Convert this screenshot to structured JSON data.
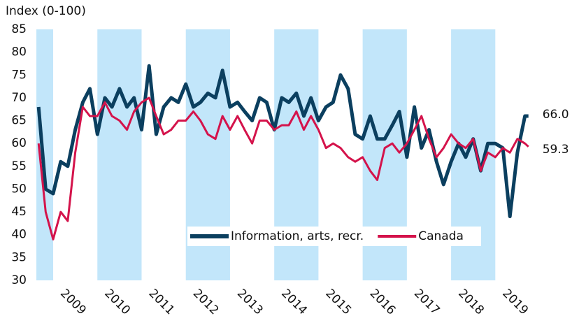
{
  "chart_data": {
    "type": "line",
    "ylabel": "Index (0-100)",
    "x": [
      2008.67,
      2008.83,
      2009.0,
      2009.17,
      2009.33,
      2009.5,
      2009.67,
      2009.83,
      2010.0,
      2010.17,
      2010.33,
      2010.5,
      2010.67,
      2010.83,
      2011.0,
      2011.17,
      2011.33,
      2011.5,
      2011.67,
      2011.83,
      2012.0,
      2012.17,
      2012.33,
      2012.5,
      2012.67,
      2012.83,
      2013.0,
      2013.17,
      2013.33,
      2013.5,
      2013.67,
      2013.83,
      2014.0,
      2014.17,
      2014.33,
      2014.5,
      2014.67,
      2014.83,
      2015.0,
      2015.17,
      2015.33,
      2015.5,
      2015.67,
      2015.83,
      2016.0,
      2016.17,
      2016.33,
      2016.5,
      2016.67,
      2016.83,
      2017.0,
      2017.17,
      2017.33,
      2017.5,
      2017.67,
      2017.83,
      2018.0,
      2018.17,
      2018.33,
      2018.5,
      2018.67,
      2018.83,
      2019.0,
      2019.17,
      2019.33,
      2019.5,
      2019.67,
      2019.75
    ],
    "series": [
      {
        "name": "Information, arts, recr.",
        "color": "#0b3f5f",
        "end_label": "66.0",
        "values": [
          68,
          50,
          49,
          56,
          55,
          63,
          69,
          72,
          62,
          70,
          68,
          72,
          68,
          70,
          63,
          77,
          62,
          68,
          70,
          69,
          73,
          68,
          69,
          71,
          70,
          76,
          68,
          69,
          67,
          65,
          70,
          69,
          63,
          70,
          69,
          71,
          66,
          70,
          65,
          68,
          69,
          75,
          72,
          62,
          61,
          66,
          61,
          61,
          64,
          67,
          57,
          68,
          59,
          63,
          56,
          51,
          56,
          60,
          57,
          61,
          54,
          60,
          60,
          59,
          44,
          58,
          66,
          66
        ]
      },
      {
        "name": "Canada",
        "color": "#d4134b",
        "end_label": "59.3",
        "values": [
          60,
          45,
          39,
          45,
          43,
          58,
          68,
          66,
          66,
          69,
          66,
          65,
          63,
          67,
          69,
          70,
          66,
          62,
          63,
          65,
          65,
          67,
          65,
          62,
          61,
          66,
          63,
          66,
          63,
          60,
          65,
          65,
          63,
          64,
          64,
          67,
          63,
          66,
          63,
          59,
          60,
          59,
          57,
          56,
          57,
          54,
          52,
          59,
          60,
          58,
          60,
          63,
          66,
          61,
          57,
          59,
          62,
          60,
          59,
          61,
          54,
          58,
          57,
          59,
          58,
          61,
          60,
          59.3
        ]
      }
    ],
    "bands": [
      [
        2008,
        2009
      ],
      [
        2010,
        2011
      ],
      [
        2012,
        2013
      ],
      [
        2014,
        2015
      ],
      [
        2016,
        2017
      ],
      [
        2018,
        2019
      ]
    ],
    "band_color": "#c2e6fa",
    "xlim": [
      2008.62,
      2020.45
    ],
    "xticks": [
      2009,
      2010,
      2011,
      2012,
      2013,
      2014,
      2015,
      2016,
      2017,
      2018,
      2019
    ],
    "ylim": [
      30,
      85
    ],
    "yticks": [
      30,
      35,
      40,
      45,
      50,
      55,
      60,
      65,
      70,
      75,
      80,
      85
    ],
    "legend": "center"
  }
}
